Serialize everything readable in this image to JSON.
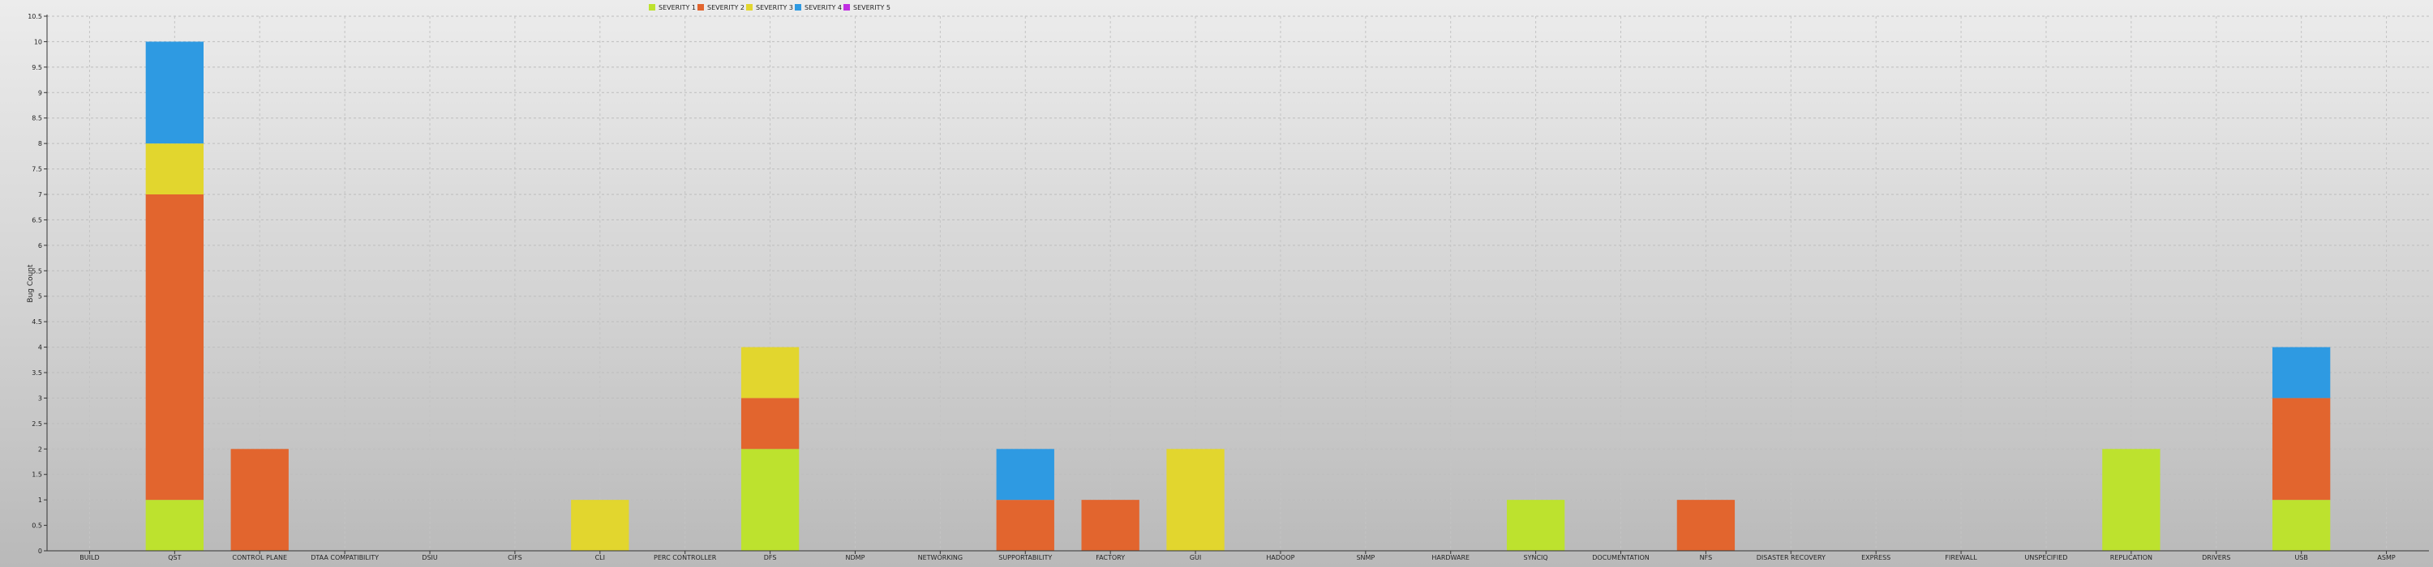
{
  "chart_data": {
    "type": "bar",
    "stacked": true,
    "ylabel": "Bug Count",
    "xlabel": "",
    "ylim": [
      0,
      10.5
    ],
    "yticks": [
      "0",
      "0.5",
      "1",
      "1.5",
      "2",
      "2.5",
      "3",
      "3.5",
      "4",
      "4.5",
      "5",
      "5.5",
      "6",
      "6.5",
      "7",
      "7.5",
      "8",
      "8.5",
      "9",
      "9.5",
      "10",
      "10.5"
    ],
    "grid": true,
    "legend_position": "top",
    "categories": [
      "Build",
      "QST",
      "Control Plane",
      "DTAA Compatibility",
      "DSIU",
      "CIFS",
      "CLI",
      "PERC Controller",
      "DFS",
      "NDMP",
      "Networking",
      "Supportability",
      "Factory",
      "GUI",
      "Hadoop",
      "SNMP",
      "Hardware",
      "SyncIQ",
      "Documentation",
      "NFS",
      "Disaster Recovery",
      "Express",
      "Firewall",
      "Unspecified",
      "Replication",
      "Drivers",
      "USB",
      "ASMP"
    ],
    "series": [
      {
        "name": "Severity 1",
        "color": "#bde22e",
        "values": [
          0,
          1,
          0,
          0,
          0,
          0,
          0,
          0,
          2,
          0,
          0,
          0,
          0,
          0,
          0,
          0,
          0,
          1,
          0,
          0,
          0,
          0,
          0,
          0,
          2,
          0,
          1,
          0
        ]
      },
      {
        "name": "Severity 2",
        "color": "#e2652e",
        "values": [
          0,
          6,
          2,
          0,
          0,
          0,
          0,
          0,
          1,
          0,
          0,
          1,
          1,
          0,
          0,
          0,
          0,
          0,
          0,
          1,
          0,
          0,
          0,
          0,
          0,
          0,
          2,
          0
        ]
      },
      {
        "name": "Severity 3",
        "color": "#e2d62e",
        "values": [
          0,
          1,
          0,
          0,
          0,
          0,
          1,
          0,
          1,
          0,
          0,
          0,
          0,
          2,
          0,
          0,
          0,
          0,
          0,
          0,
          0,
          0,
          0,
          0,
          0,
          0,
          0,
          0
        ]
      },
      {
        "name": "Severity 4",
        "color": "#2e9ae2",
        "values": [
          0,
          2,
          0,
          0,
          0,
          0,
          0,
          0,
          0,
          0,
          0,
          1,
          0,
          0,
          0,
          0,
          0,
          0,
          0,
          0,
          0,
          0,
          0,
          0,
          0,
          0,
          1,
          0
        ]
      },
      {
        "name": "Severity 5",
        "color": "#c02ee2",
        "values": [
          0,
          0,
          0,
          0,
          0,
          0,
          0,
          0,
          0,
          0,
          0,
          0,
          0,
          0,
          0,
          0,
          0,
          0,
          0,
          0,
          0,
          0,
          0,
          0,
          0,
          0,
          0,
          0
        ]
      }
    ]
  }
}
